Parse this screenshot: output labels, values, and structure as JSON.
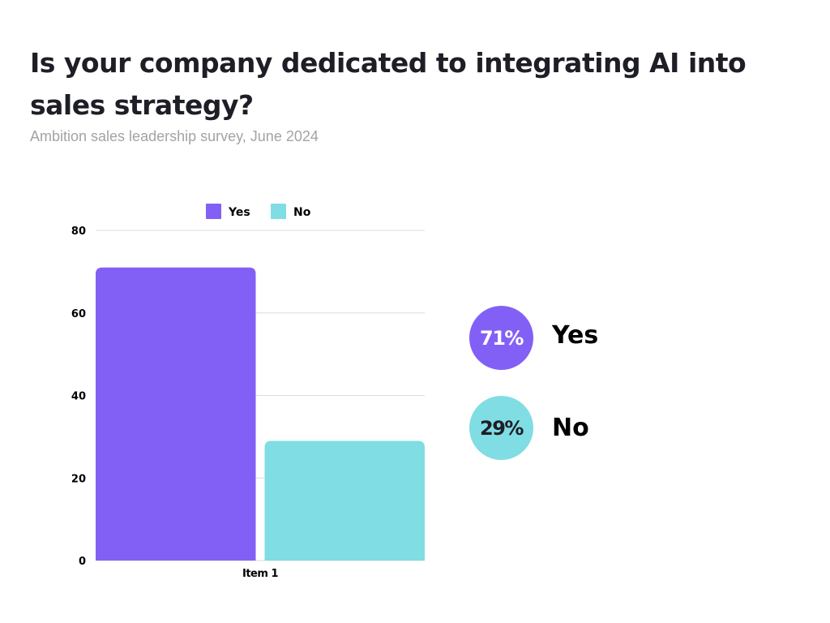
{
  "header": {
    "title": "Is your company dedicated to integrating AI into sales strategy?",
    "subtitle": "Ambition sales leadership survey, June 2024"
  },
  "summary": {
    "yes_pct": "71%",
    "yes_label": "Yes",
    "no_pct": "29%",
    "no_label": "No"
  },
  "colors": {
    "yes": "#8360f5",
    "no": "#80dde3",
    "yes_badge_text": "#ffffff",
    "no_badge_text": "#1d1e26"
  },
  "chart_data": {
    "type": "bar",
    "categories": [
      "Item 1"
    ],
    "series": [
      {
        "name": "Yes",
        "values": [
          71
        ]
      },
      {
        "name": "No",
        "values": [
          29
        ]
      }
    ],
    "ylim": [
      0,
      80
    ],
    "yticks": [
      0,
      20,
      40,
      60,
      80
    ],
    "grid": true,
    "legend": "top"
  }
}
